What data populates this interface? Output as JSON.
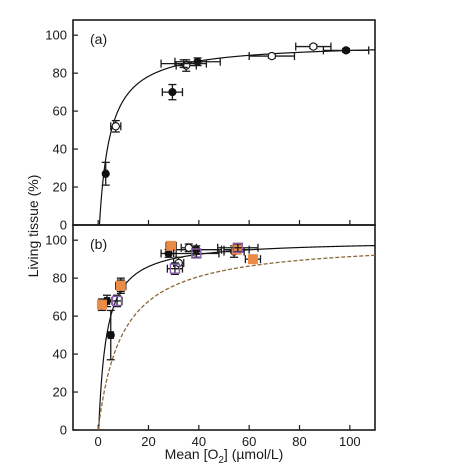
{
  "chart_data": {
    "type": "scatter",
    "xlabel_parts": [
      "Mean [O",
      "2",
      "] (µmol/L)"
    ],
    "ylabel": "Living tissue (%)",
    "xlim": [
      -10,
      110
    ],
    "x_ticks": [
      0,
      20,
      40,
      60,
      80,
      100
    ],
    "panels": [
      {
        "label": "(a)",
        "ylim": [
          0,
          108
        ],
        "y_ticks": [
          0,
          20,
          40,
          60,
          80,
          100
        ],
        "fit_curve": {
          "style": "solid",
          "color": "#111111",
          "vmax": 96,
          "km": 4.4,
          "x0": 0.5
        },
        "series": [
          {
            "marker": "filled-circle",
            "color": "#111111",
            "points": [
              {
                "x": 3,
                "y": 27,
                "xerr": 0.5,
                "yerr": 6
              },
              {
                "x": 29.5,
                "y": 70,
                "xerr": 4,
                "yerr": 4
              },
              {
                "x": 39.5,
                "y": 86,
                "xerr": 9,
                "yerr": 2
              },
              {
                "x": 98.5,
                "y": 92,
                "xerr": 9,
                "yerr": 1
              }
            ]
          },
          {
            "marker": "open-circle",
            "color": "#111111",
            "points": [
              {
                "x": 7,
                "y": 52,
                "xerr": 2,
                "yerr": 3
              },
              {
                "x": 35,
                "y": 84,
                "xerr": 4,
                "yerr": 3
              },
              {
                "x": 69,
                "y": 89,
                "xerr": 9,
                "yerr": 1
              },
              {
                "x": 85.5,
                "y": 94,
                "xerr": 7,
                "yerr": 1
              }
            ]
          },
          {
            "marker": "none",
            "color": "#111111",
            "points": [
              {
                "x": 34,
                "y": 85,
                "xerr": 9,
                "yerr": 2
              }
            ]
          }
        ]
      },
      {
        "label": "(b)",
        "ylim": [
          0,
          108
        ],
        "y_ticks": [
          0,
          20,
          40,
          60,
          80,
          100
        ],
        "fit_curve": {
          "style": "solid",
          "color": "#111111",
          "vmax": 100,
          "km": 3.2,
          "x0": 0.2
        },
        "fit_curve_2": {
          "style": "dashed",
          "color": "#8a6a3a",
          "vmax": 100,
          "km": 9.5,
          "x0": 0
        },
        "series": [
          {
            "marker": "filled-circle",
            "color": "#111111",
            "points": [
              {
                "x": 3.5,
                "y": 68,
                "xerr": 1,
                "yerr": 3
              },
              {
                "x": 5,
                "y": 50,
                "xerr": 1,
                "yerr": 13
              },
              {
                "x": 9,
                "y": 76,
                "xerr": 2,
                "yerr": 4
              },
              {
                "x": 28,
                "y": 93,
                "xerr": 3,
                "yerr": 2
              },
              {
                "x": 39,
                "y": 95,
                "xerr": 10,
                "yerr": 2
              },
              {
                "x": 54,
                "y": 94,
                "xerr": 4,
                "yerr": 3
              }
            ]
          },
          {
            "marker": "open-circle",
            "color": "#111111",
            "points": [
              {
                "x": 32,
                "y": 88,
                "xerr": 2,
                "yerr": 3
              },
              {
                "x": 36,
                "y": 96,
                "xerr": 3,
                "yerr": 2
              }
            ]
          },
          {
            "marker": "filled-square",
            "color": "#ea8b46",
            "points": [
              {
                "x": 1.5,
                "y": 66,
                "xerr": 1,
                "yerr": 3
              },
              {
                "x": 9,
                "y": 76,
                "xerr": 2,
                "yerr": 3
              },
              {
                "x": 29,
                "y": 97,
                "xerr": 2,
                "yerr": 2
              },
              {
                "x": 55,
                "y": 95,
                "xerr": 5,
                "yerr": 2
              },
              {
                "x": 61.5,
                "y": 90,
                "xerr": 3,
                "yerr": 2
              }
            ]
          },
          {
            "marker": "open-square",
            "color": "#8b5fb0",
            "points": [
              {
                "x": 7.5,
                "y": 68,
                "xerr": 2,
                "yerr": 3
              },
              {
                "x": 30.5,
                "y": 85,
                "xerr": 3,
                "yerr": 3
              },
              {
                "x": 39,
                "y": 93,
                "xerr": 9,
                "yerr": 2
              },
              {
                "x": 55.5,
                "y": 96,
                "xerr": 8,
                "yerr": 2
              }
            ]
          }
        ]
      }
    ]
  }
}
